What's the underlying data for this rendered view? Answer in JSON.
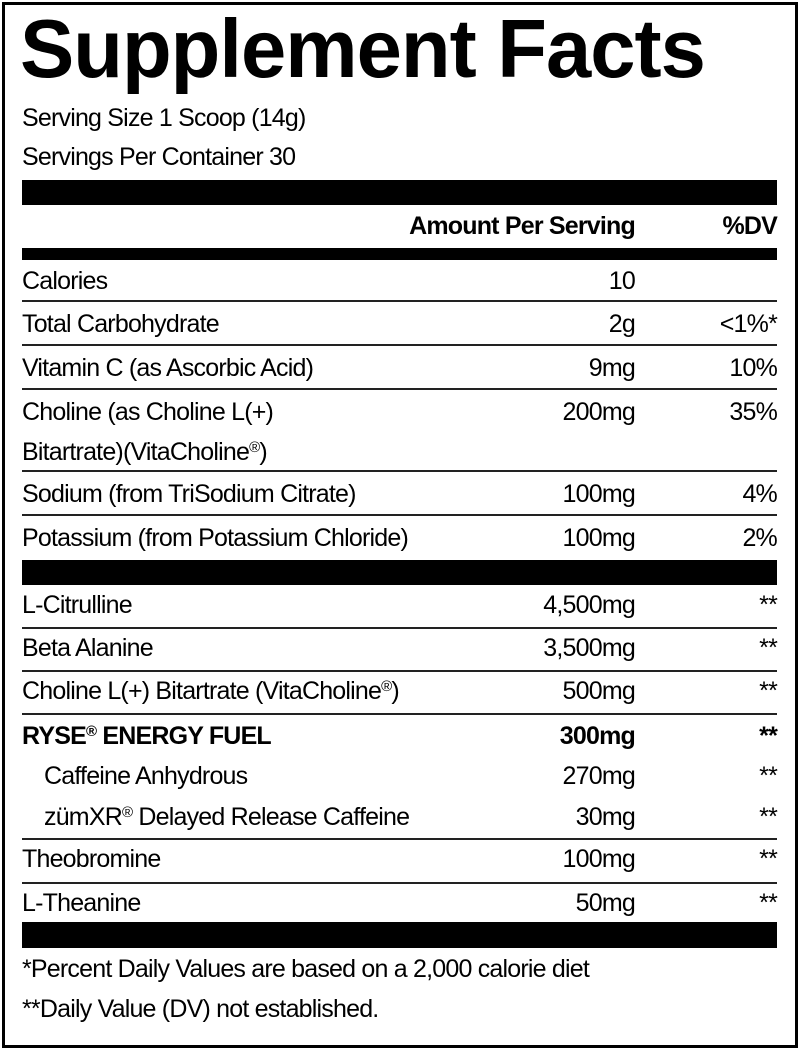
{
  "title": "Supplement Facts",
  "serving_size": "Serving Size 1 Scoop (14g)",
  "servings_per_container": "Servings Per Container 30",
  "header": {
    "amount": "Amount Per Serving",
    "dv": "%DV"
  },
  "nutrients": [
    {
      "name": "Calories",
      "amount": "10",
      "dv": ""
    },
    {
      "name": "Total Carbohydrate",
      "amount": "2g",
      "dv": "<1%*"
    },
    {
      "name": "Vitamin C (as Ascorbic Acid)",
      "amount": "9mg",
      "dv": "10%"
    },
    {
      "name": "Choline (as Choline L(+)",
      "name2": "Bitartrate)(VitaCholine",
      "name2_sup": "®",
      "name2_end": ")",
      "amount": "200mg",
      "dv": "35%"
    },
    {
      "name": "Sodium (from TriSodium Citrate)",
      "amount": "100mg",
      "dv": "4%"
    },
    {
      "name": "Potassium (from Potassium Chloride)",
      "amount": "100mg",
      "dv": "2%"
    }
  ],
  "ingredients": [
    {
      "name": "L-Citrulline",
      "amount": "4,500mg",
      "dv": "**"
    },
    {
      "name": "Beta Alanine",
      "amount": "3,500mg",
      "dv": "**"
    },
    {
      "name": "Choline L(+) Bitartrate (VitaCholine",
      "sup": "®",
      "end": ")",
      "amount": "500mg",
      "dv": "**"
    },
    {
      "name": "RYSE",
      "sup": "®",
      "end": " ENERGY FUEL",
      "amount": "300mg",
      "dv": "**"
    },
    {
      "name": "Caffeine Anhydrous",
      "amount": "270mg",
      "dv": "**"
    },
    {
      "name": "zümXR",
      "sup": "®",
      "end": " Delayed Release Caffeine",
      "amount": "30mg",
      "dv": "**"
    },
    {
      "name": "Theobromine",
      "amount": "100mg",
      "dv": "**"
    },
    {
      "name": "L-Theanine",
      "amount": "50mg",
      "dv": "**"
    }
  ],
  "footnotes": [
    "*Percent Daily Values are based on a 2,000 calorie diet",
    "**Daily Value (DV) not established."
  ]
}
